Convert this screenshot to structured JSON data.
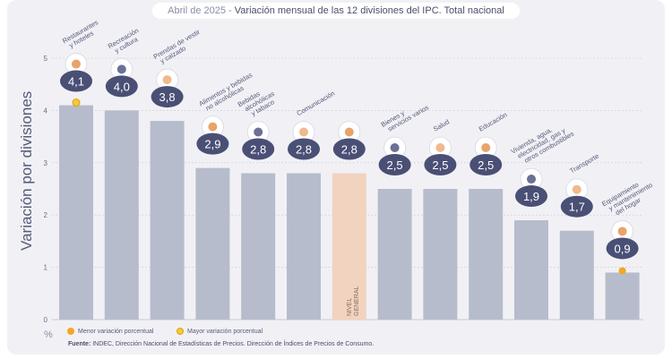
{
  "chart_data": {
    "type": "bar",
    "title_date": "Abril de 2025 -",
    "title": "Variación mensual de las 12 divisiones del IPC. Total nacional",
    "ylabel": "Variación por divisiones",
    "yunit": "%",
    "ylim": [
      0,
      5
    ],
    "yticks": [
      "0",
      "1",
      "2",
      "3",
      "4",
      "5"
    ],
    "grid": true,
    "categories": [
      [
        "Restaurantes",
        "y hoteles"
      ],
      [
        "Recreación",
        "y cultura"
      ],
      [
        "Prendas de vestir",
        "y calzado"
      ],
      [
        "Alimentos y bebidas",
        "no alcohólicas"
      ],
      [
        "Bebidas",
        "alcohólicas",
        "y tabaco"
      ],
      [
        "Comunicación"
      ],
      [
        "NIVEL",
        "GENERAL"
      ],
      [
        "Bienes y",
        "servicios varios"
      ],
      [
        "Salud"
      ],
      [
        "Educación"
      ],
      [
        "Vivienda, agua,",
        "electricidad, gas y",
        "otros combustibles"
      ],
      [
        "Transporte"
      ],
      [
        "Equipamiento",
        "y mantenimiento",
        "del hogar"
      ]
    ],
    "values": [
      4.1,
      4.0,
      3.8,
      2.9,
      2.8,
      2.8,
      2.8,
      2.5,
      2.5,
      2.5,
      1.9,
      1.7,
      0.9
    ],
    "value_labels": [
      "4,1",
      "4,0",
      "3,8",
      "2,9",
      "2,8",
      "2,8",
      "2,8",
      "2,5",
      "2,5",
      "2,5",
      "1,9",
      "1,7",
      "0,9"
    ],
    "highlight_index": 6,
    "max_marker_index": 0,
    "min_marker_index": 12,
    "legend": {
      "min_label": "Menor variación porcentual",
      "max_label": "Mayor variación porcentual"
    },
    "colors": {
      "bar": "#b7bccc",
      "highlight_bar": "#f2d3c0",
      "bubble": "#4a4f75",
      "min_marker": "#f5a623",
      "max_marker": "#f5c842"
    },
    "source_label": "Fuente:",
    "source_text": "INDEC, Dirección Nacional de Estadísticas de Precios. Dirección de Índices de Precios de Consumo."
  }
}
